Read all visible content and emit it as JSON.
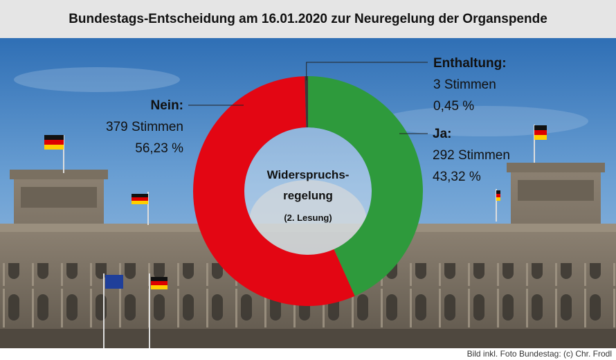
{
  "title": "Bundestags-Entscheidung am 16.01.2020 zur Neuregelung der Organspende",
  "credit": "Bild inkl. Foto Bundestag: (c) Chr. Frodl",
  "center": {
    "line1": "Widerspruchs-",
    "line2": "regelung",
    "line3": "(2. Lesung)"
  },
  "chart_data": {
    "type": "pie",
    "title": "Bundestags-Entscheidung am 16.01.2020 zur Neuregelung der Organspende",
    "center_label": "Widerspruchs- regelung (2. Lesung)",
    "slices": [
      {
        "name": "Ja:",
        "votes": "292 Stimmen",
        "percent_label": "43,32 %",
        "value": 43.32,
        "color": "#2e9a3c"
      },
      {
        "name": "Nein:",
        "votes": "379 Stimmen",
        "percent_label": "56,23 %",
        "value": 56.23,
        "color": "#e30613"
      },
      {
        "name": "Enthaltung:",
        "votes": "3 Stimmen",
        "percent_label": "0,45 %",
        "value": 0.45,
        "color": "#3a3a3a"
      }
    ]
  }
}
